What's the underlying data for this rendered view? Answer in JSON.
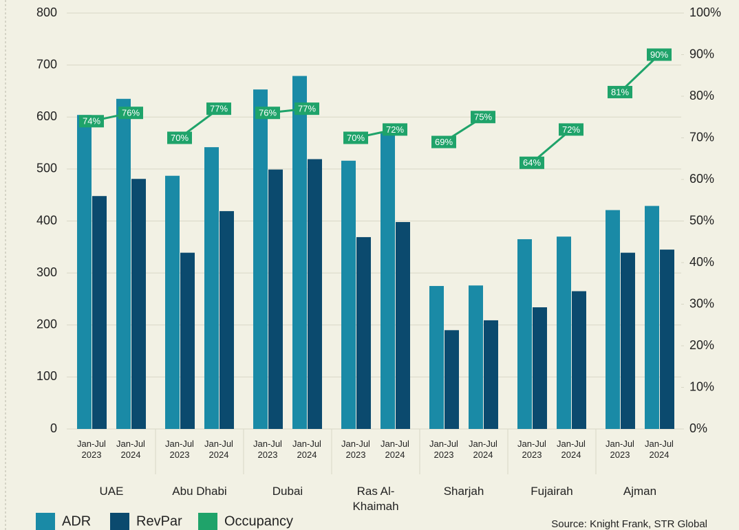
{
  "chart_data": {
    "type": "bar",
    "groups": [
      "UAE",
      "Abu Dhabi",
      "Dubai",
      "Ras Al-Khaimah",
      "Sharjah",
      "Fujairah",
      "Ajman"
    ],
    "categories": [
      "Jan-Jul 2023",
      "Jan-Jul 2024",
      "Jan-Jul 2023",
      "Jan-Jul 2024",
      "Jan-Jul 2023",
      "Jan-Jul 2024",
      "Jan-Jul 2023",
      "Jan-Jul 2024",
      "Jan-Jul 2023",
      "Jan-Jul 2024",
      "Jan-Jul 2023",
      "Jan-Jul 2024",
      "Jan-Jul 2023",
      "Jan-Jul 2024"
    ],
    "series": [
      {
        "name": "ADR",
        "color": "#1a8aa6",
        "values": [
          604,
          635,
          487,
          542,
          653,
          679,
          516,
          569,
          275,
          276,
          365,
          370,
          421,
          429
        ]
      },
      {
        "name": "RevPar",
        "color": "#0b4a6e",
        "values": [
          448,
          481,
          339,
          419,
          499,
          519,
          369,
          398,
          190,
          209,
          234,
          265,
          339,
          345
        ]
      },
      {
        "name": "Occupancy",
        "color": "#1fa36a",
        "axis": "y2",
        "type": "line",
        "values": [
          74,
          76,
          70,
          77,
          76,
          77,
          70,
          72,
          69,
          75,
          64,
          72,
          81,
          90
        ],
        "value_labels": [
          "74%",
          "76%",
          "70%",
          "77%",
          "76%",
          "77%",
          "70%",
          "72%",
          "69%",
          "75%",
          "64%",
          "72%",
          "81%",
          "90%"
        ]
      }
    ],
    "ylim": [
      0,
      800
    ],
    "yticks": [
      0,
      100,
      200,
      300,
      400,
      500,
      600,
      700,
      800
    ],
    "y2lim": [
      0,
      100
    ],
    "y2ticks": [
      {
        "value": 0,
        "label": "0%"
      },
      {
        "value": 10,
        "label": "10%"
      },
      {
        "value": 20,
        "label": "20%"
      },
      {
        "value": 30,
        "label": "30%"
      },
      {
        "value": 40,
        "label": "40%"
      },
      {
        "value": 50,
        "label": "50%"
      },
      {
        "value": 60,
        "label": "60%"
      },
      {
        "value": 70,
        "label": "70%"
      },
      {
        "value": 80,
        "label": "80%"
      },
      {
        "value": 90,
        "label": "90%"
      },
      {
        "value": 100,
        "label": "100%"
      }
    ],
    "grid": true,
    "source": "Source: Knight Frank, STR Global"
  }
}
